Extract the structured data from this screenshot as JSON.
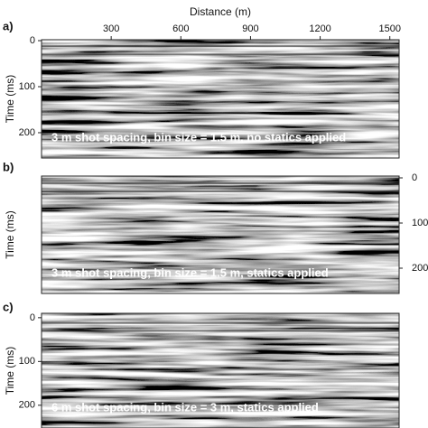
{
  "chart_data": [
    {
      "type": "image",
      "label": "a)",
      "xlabel": "Distance (m)",
      "ylabel": "Time (ms)",
      "annotation": "3 m shot spacing, bin size = 1.5 m, no statics applied",
      "xlim": [
        0,
        1540
      ],
      "xticks": [
        300,
        600,
        900,
        1200,
        1500
      ],
      "ylim": [
        -2,
        255
      ],
      "yticks": [
        0,
        100,
        200
      ],
      "ytick_side": "left"
    },
    {
      "type": "image",
      "label": "b)",
      "ylabel": "Time (ms)",
      "annotation": "3 m shot spacing, bin size = 1.5 m, statics applied",
      "ylim": [
        -4,
        256
      ],
      "yticks": [
        0,
        100,
        200
      ],
      "ytick_side": "right"
    },
    {
      "type": "image",
      "label": "c)",
      "ylabel": "Time (ms)",
      "annotation": "6 m shot spacing, bin size = 3 m, statics applied",
      "ylim": [
        -10,
        252
      ],
      "yticks": [
        0,
        100,
        200
      ],
      "ytick_side": "left"
    }
  ]
}
